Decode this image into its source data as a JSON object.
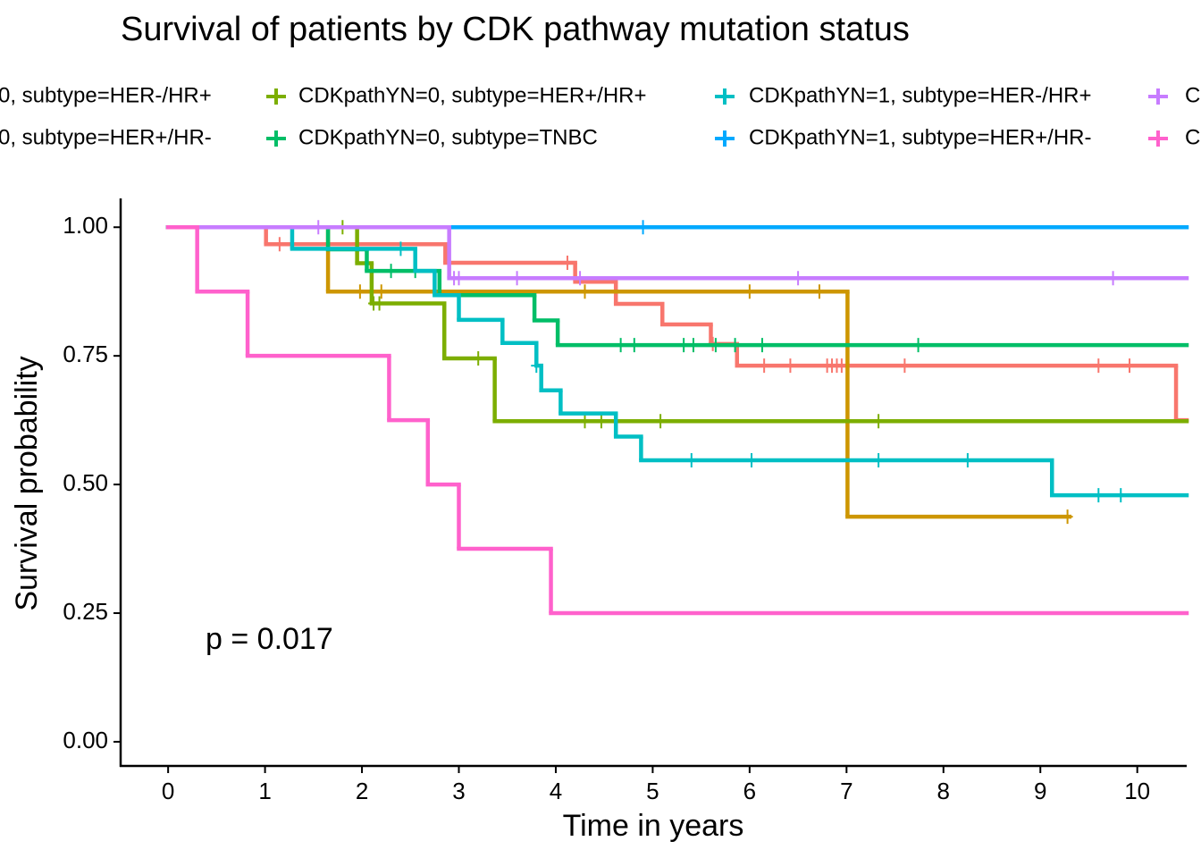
{
  "chart_data": {
    "type": "survival",
    "title": "Survival of patients by CDK pathway mutation status",
    "x_label": "Time in years",
    "y_label": "Survival probability",
    "annotation": "p = 0.017",
    "xlim": [
      -0.49,
      10.51
    ],
    "ylim": [
      -0.047,
      1.056
    ],
    "xticks": [
      0,
      1,
      2,
      3,
      4,
      5,
      6,
      7,
      8,
      9,
      10
    ],
    "yticks": [
      {
        "value": 0,
        "label": "0.00"
      },
      {
        "value": 0.25,
        "label": "0.25"
      },
      {
        "value": 0.5,
        "label": "0.50"
      },
      {
        "value": 0.75,
        "label": "0.75"
      },
      {
        "value": 1,
        "label": "1.00"
      }
    ],
    "series": [
      {
        "name": "0, subtype=HER-/HR+",
        "color": "#F8766D",
        "x": [
          0,
          1.01,
          2.86,
          4.2,
          4.62,
          5.1,
          5.6,
          5.87,
          10.4,
          10.51
        ],
        "values": [
          1,
          0.967,
          0.931,
          0.894,
          0.851,
          0.811,
          0.773,
          0.731,
          0.625,
          0.625
        ],
        "censor_x": [
          1.15,
          4.12,
          5.62,
          6.15,
          6.42,
          6.8,
          6.85,
          6.9,
          6.95,
          7.6,
          9.6,
          9.92
        ],
        "censor_values": [
          0.967,
          0.931,
          0.773,
          0.731,
          0.731,
          0.731,
          0.731,
          0.731,
          0.731,
          0.731,
          0.731,
          0.731
        ]
      },
      {
        "name": "0, subtype=HER+/HR-",
        "color": "#CD9600",
        "x": [
          0,
          1.65,
          7.01,
          9.3
        ],
        "values": [
          1,
          0.875,
          0.4375,
          0.4375
        ],
        "censor_x": [
          1.98,
          2.2,
          4.3,
          6.0,
          6.72,
          9.28
        ],
        "censor_values": [
          0.875,
          0.875,
          0.875,
          0.875,
          0.875,
          0.4375
        ]
      },
      {
        "name": "CDKpathYN=0, subtype=HER+/HR+",
        "color": "#7CAE00",
        "x": [
          0,
          1.95,
          2.1,
          2.85,
          3.37,
          10.51
        ],
        "values": [
          1,
          0.93,
          0.852,
          0.745,
          0.623,
          0.623
        ],
        "censor_x": [
          1.8,
          2.12,
          2.18,
          3.2,
          4.3,
          4.47,
          5.08,
          7.33
        ],
        "censor_values": [
          1,
          0.852,
          0.852,
          0.745,
          0.623,
          0.623,
          0.623,
          0.623
        ]
      },
      {
        "name": "CDKpathYN=0, subtype=TNBC",
        "color": "#00BE67",
        "x": [
          0,
          1.65,
          2.05,
          2.8,
          3.78,
          4.02,
          10.51
        ],
        "values": [
          1,
          0.957,
          0.915,
          0.868,
          0.819,
          0.771,
          0.771
        ],
        "censor_x": [
          2.3,
          2.55,
          4.67,
          4.81,
          5.32,
          5.42,
          5.65,
          5.85,
          6.13,
          7.74
        ],
        "censor_values": [
          0.915,
          0.915,
          0.771,
          0.771,
          0.771,
          0.771,
          0.771,
          0.771,
          0.771,
          0.771
        ]
      },
      {
        "name": "CDKpathYN=1, subtype=HER-/HR+",
        "color": "#00BFC4",
        "x": [
          0,
          1.28,
          2.55,
          2.75,
          3.0,
          3.45,
          3.8,
          3.85,
          4.05,
          4.62,
          4.88,
          9.12,
          10.51
        ],
        "values": [
          1,
          0.958,
          0.915,
          0.868,
          0.82,
          0.775,
          0.731,
          0.683,
          0.638,
          0.593,
          0.547,
          0.479,
          0.479
        ],
        "censor_x": [
          2.4,
          3.8,
          5.4,
          6.02,
          7.33,
          8.25,
          9.6,
          9.83
        ],
        "censor_values": [
          0.958,
          0.731,
          0.547,
          0.547,
          0.547,
          0.547,
          0.479,
          0.479
        ]
      },
      {
        "name": "CDKpathYN=1, subtype=HER+/HR-",
        "color": "#00A9FF",
        "x": [
          0,
          10.51
        ],
        "values": [
          1,
          1
        ],
        "censor_x": [
          4.9
        ],
        "censor_values": [
          1
        ]
      },
      {
        "name": "C",
        "color": "#C77CFF",
        "x": [
          0,
          2.9,
          10.51
        ],
        "values": [
          1,
          0.901,
          0.901
        ],
        "censor_x": [
          1.55,
          2.95,
          3.0,
          3.6,
          4.25,
          6.5,
          9.75
        ],
        "censor_values": [
          1,
          0.901,
          0.901,
          0.901,
          0.901,
          0.901,
          0.901
        ]
      },
      {
        "name": "C",
        "color": "#FF61CC",
        "x": [
          0,
          0.3,
          0.82,
          2.28,
          2.68,
          3.0,
          3.95,
          10.51
        ],
        "values": [
          1,
          0.875,
          0.75,
          0.625,
          0.5,
          0.375,
          0.25,
          0.25
        ],
        "censor_x": [],
        "censor_values": []
      }
    ]
  }
}
